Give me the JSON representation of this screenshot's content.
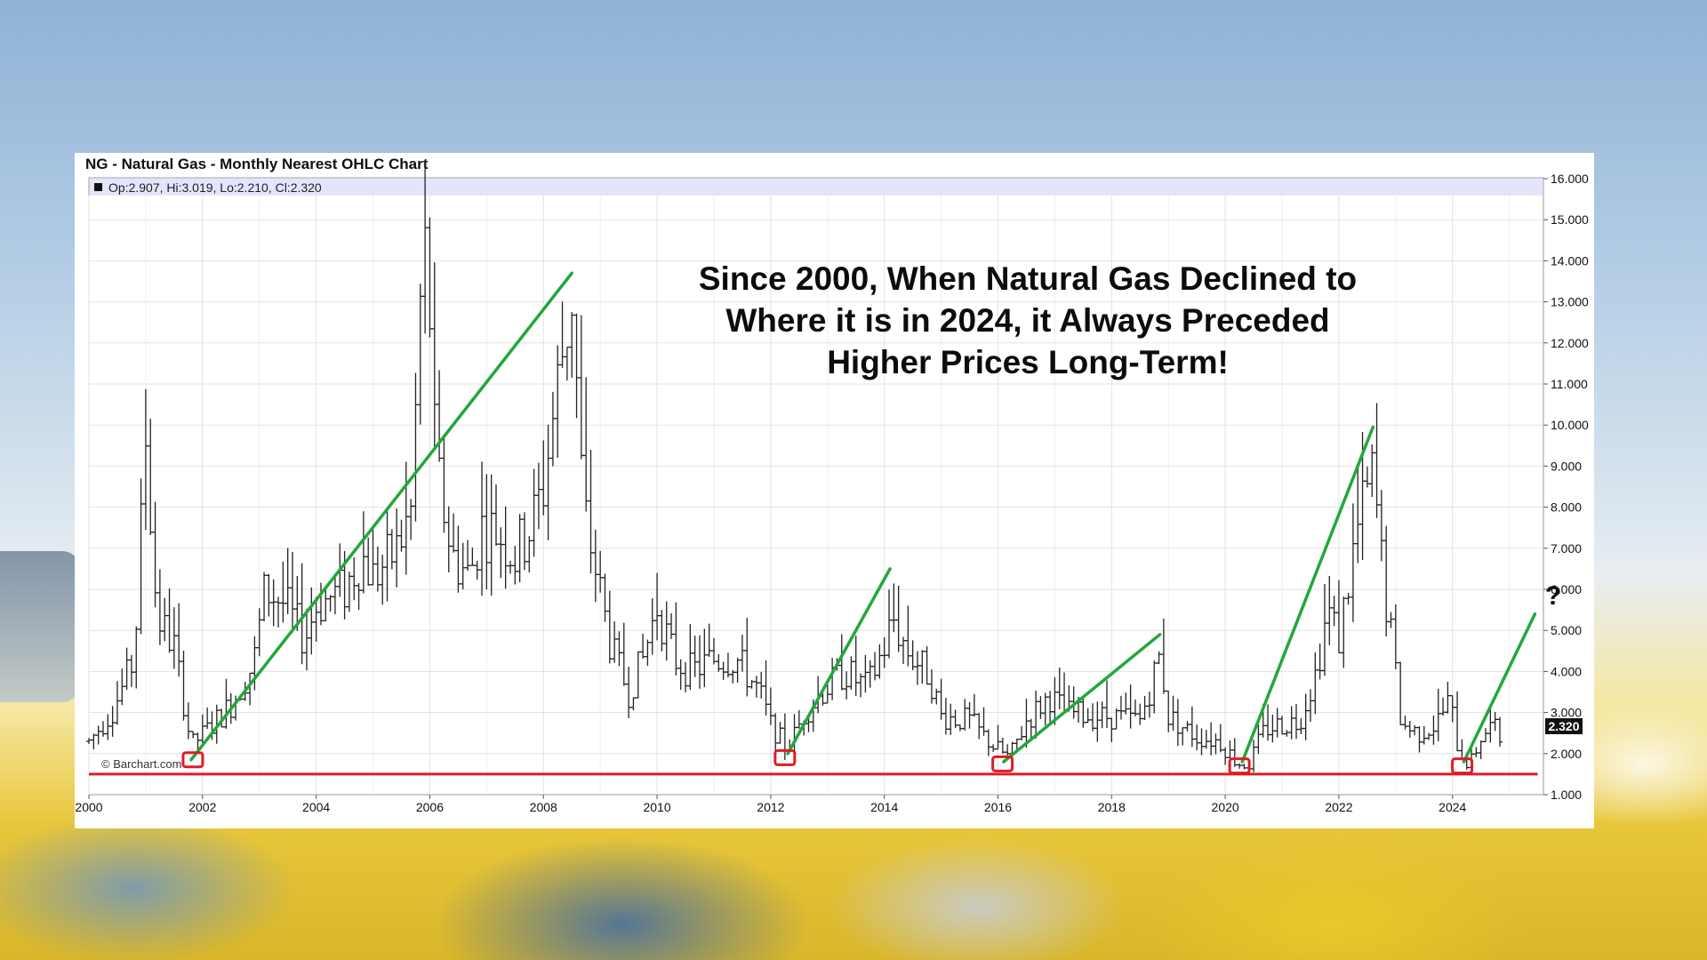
{
  "chart_data": {
    "type": "ohlc",
    "title": "NG - Natural Gas - Monthly Nearest OHLC Chart",
    "legend_text": "Op:2.907, Hi:3.019, Lo:2.210, Cl:2.320",
    "last_price_label": "2.320",
    "credit": "© Barchart.com",
    "annotation_lines": [
      "Since 2000, When Natural Gas Declined to",
      "Where it is in 2024, it Always Preceded",
      "Higher Prices Long-Term!"
    ],
    "question_mark": "?",
    "x_range": [
      2000.0,
      2025.6
    ],
    "y_range": [
      1.0,
      16.0
    ],
    "x_ticks": [
      {
        "value": 2000,
        "label": "2000"
      },
      {
        "value": 2002,
        "label": "2002"
      },
      {
        "value": 2004,
        "label": "2004"
      },
      {
        "value": 2006,
        "label": "2006"
      },
      {
        "value": 2008,
        "label": "2008"
      },
      {
        "value": 2010,
        "label": "2010"
      },
      {
        "value": 2012,
        "label": "2012"
      },
      {
        "value": 2014,
        "label": "2014"
      },
      {
        "value": 2016,
        "label": "2016"
      },
      {
        "value": 2018,
        "label": "2018"
      },
      {
        "value": 2020,
        "label": "2020"
      },
      {
        "value": 2022,
        "label": "2022"
      },
      {
        "value": 2024,
        "label": "2024"
      }
    ],
    "y_ticks": [
      {
        "value": 16,
        "label": "16.000"
      },
      {
        "value": 15,
        "label": "15.000"
      },
      {
        "value": 14,
        "label": "14.000"
      },
      {
        "value": 13,
        "label": "13.000"
      },
      {
        "value": 12,
        "label": "12.000"
      },
      {
        "value": 11,
        "label": "11.000"
      },
      {
        "value": 10,
        "label": "10.000"
      },
      {
        "value": 9,
        "label": "9.000"
      },
      {
        "value": 8,
        "label": "8.000"
      },
      {
        "value": 7,
        "label": "7.000"
      },
      {
        "value": 6,
        "label": "6.000"
      },
      {
        "value": 5,
        "label": "5.000"
      },
      {
        "value": 4,
        "label": "4.000"
      },
      {
        "value": 3,
        "label": "3.000"
      },
      {
        "value": 2,
        "label": "2.000"
      },
      {
        "value": 1,
        "label": "1.000"
      }
    ],
    "grid": true,
    "close_price_anchors": [
      [
        2000.0,
        2.3
      ],
      [
        2000.4,
        3.0
      ],
      [
        2000.8,
        4.3
      ],
      [
        2001.0,
        9.7
      ],
      [
        2001.2,
        5.3
      ],
      [
        2001.5,
        4.6
      ],
      [
        2001.8,
        2.2
      ],
      [
        2002.1,
        2.6
      ],
      [
        2002.5,
        3.2
      ],
      [
        2002.9,
        4.2
      ],
      [
        2003.1,
        6.0
      ],
      [
        2003.4,
        5.7
      ],
      [
        2003.8,
        4.8
      ],
      [
        2004.0,
        5.6
      ],
      [
        2004.5,
        6.0
      ],
      [
        2004.8,
        6.8
      ],
      [
        2005.0,
        6.3
      ],
      [
        2005.4,
        6.9
      ],
      [
        2005.7,
        8.0
      ],
      [
        2005.8,
        12.5
      ],
      [
        2005.95,
        14.5
      ],
      [
        2006.1,
        9.0
      ],
      [
        2006.4,
        6.8
      ],
      [
        2006.7,
        6.3
      ],
      [
        2006.9,
        7.5
      ],
      [
        2007.2,
        7.4
      ],
      [
        2007.5,
        6.8
      ],
      [
        2007.8,
        7.6
      ],
      [
        2008.0,
        8.5
      ],
      [
        2008.3,
        11.5
      ],
      [
        2008.5,
        13.2
      ],
      [
        2008.7,
        8.0
      ],
      [
        2008.9,
        6.6
      ],
      [
        2009.2,
        4.5
      ],
      [
        2009.5,
        3.5
      ],
      [
        2009.75,
        4.3
      ],
      [
        2010.0,
        5.6
      ],
      [
        2010.3,
        4.3
      ],
      [
        2010.6,
        4.0
      ],
      [
        2011.0,
        4.3
      ],
      [
        2011.4,
        4.3
      ],
      [
        2011.8,
        3.5
      ],
      [
        2012.0,
        2.7
      ],
      [
        2012.3,
        2.1
      ],
      [
        2012.6,
        3.0
      ],
      [
        2012.9,
        3.5
      ],
      [
        2013.3,
        4.0
      ],
      [
        2013.7,
        3.6
      ],
      [
        2014.0,
        4.6
      ],
      [
        2014.15,
        5.3
      ],
      [
        2014.4,
        4.5
      ],
      [
        2014.8,
        3.9
      ],
      [
        2015.0,
        2.9
      ],
      [
        2015.5,
        2.8
      ],
      [
        2015.9,
        2.2
      ],
      [
        2016.2,
        1.9
      ],
      [
        2016.5,
        2.8
      ],
      [
        2016.9,
        3.4
      ],
      [
        2017.2,
        3.0
      ],
      [
        2017.7,
        2.9
      ],
      [
        2018.0,
        2.9
      ],
      [
        2018.5,
        2.8
      ],
      [
        2018.85,
        4.4
      ],
      [
        2019.0,
        2.9
      ],
      [
        2019.5,
        2.4
      ],
      [
        2019.9,
        2.3
      ],
      [
        2020.2,
        1.8
      ],
      [
        2020.4,
        1.7
      ],
      [
        2020.7,
        2.6
      ],
      [
        2020.95,
        2.7
      ],
      [
        2021.3,
        2.8
      ],
      [
        2021.6,
        4.0
      ],
      [
        2021.8,
        5.5
      ],
      [
        2022.0,
        4.8
      ],
      [
        2022.3,
        7.3
      ],
      [
        2022.6,
        8.8
      ],
      [
        2022.8,
        6.0
      ],
      [
        2022.95,
        4.5
      ],
      [
        2023.1,
        2.7
      ],
      [
        2023.4,
        2.5
      ],
      [
        2023.7,
        2.7
      ],
      [
        2023.95,
        3.3
      ],
      [
        2024.1,
        2.1
      ],
      [
        2024.3,
        1.7
      ],
      [
        2024.5,
        2.4
      ],
      [
        2024.7,
        2.7
      ],
      [
        2024.85,
        2.32
      ]
    ],
    "support_line": {
      "y": 1.5,
      "from": 2000.0,
      "to": 2025.5
    },
    "low_markers": [
      {
        "x": 2001.83,
        "y": 1.85
      },
      {
        "x": 2012.25,
        "y": 1.9
      },
      {
        "x": 2016.08,
        "y": 1.75
      },
      {
        "x": 2020.25,
        "y": 1.7
      },
      {
        "x": 2024.17,
        "y": 1.7
      }
    ],
    "trend_lines": [
      {
        "x1": 2001.8,
        "y1": 1.85,
        "x2": 2008.5,
        "y2": 13.7
      },
      {
        "x1": 2012.3,
        "y1": 2.0,
        "x2": 2014.1,
        "y2": 6.5
      },
      {
        "x1": 2016.1,
        "y1": 1.8,
        "x2": 2018.85,
        "y2": 4.9
      },
      {
        "x1": 2020.3,
        "y1": 1.8,
        "x2": 2022.6,
        "y2": 9.95
      },
      {
        "x1": 2024.2,
        "y1": 1.8,
        "x2": 2025.45,
        "y2": 5.4
      }
    ],
    "colors": {
      "bars": "#222222",
      "trend": "#21a83a",
      "support": "#e01b24",
      "marker": "#e01b24",
      "grid": "#e2e2e2",
      "legend_band": "#e4e4fc"
    }
  }
}
